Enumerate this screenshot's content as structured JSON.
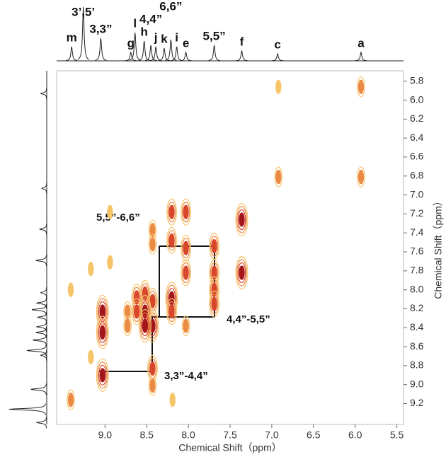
{
  "chart_data": {
    "type": "contour",
    "xlabel": "Chemical Shift（ppm）",
    "ylabel": "Chemical Shift（ppm）",
    "xlim": [
      9.58,
      5.42
    ],
    "ylim": [
      5.69,
      9.42
    ],
    "xticks": [
      {
        "value": 9,
        "label": "9.0"
      },
      8.5,
      {
        "value": 8,
        "label": "8.0"
      },
      7.5,
      {
        "value": 7,
        "label": "7.0"
      },
      6.5,
      {
        "value": 6,
        "label": "6.0"
      },
      5.5
    ],
    "yticks": [
      5.8,
      {
        "value": 6,
        "label": "6.0"
      },
      6.2,
      6.4,
      6.6,
      6.8,
      {
        "value": 7,
        "label": "7.0"
      },
      7.2,
      7.4,
      7.6,
      7.8,
      {
        "value": 8,
        "label": "8.0"
      },
      8.2,
      8.4,
      8.6,
      8.8,
      {
        "value": 9,
        "label": "9.0"
      },
      9.2
    ],
    "colors": [
      "#f6c56a",
      "#eb8a45",
      "#d9472a",
      "#a3161a"
    ],
    "x": [
      5.93,
      6.92,
      5.93,
      6.92,
      8.2,
      8.03,
      7.36,
      7.36,
      7.69,
      7.69,
      7.69,
      7.69,
      8.03,
      8.03,
      8.03,
      8.2,
      8.2,
      8.2,
      8.43,
      8.43,
      8.43,
      8.43,
      8.43,
      8.43,
      8.52,
      8.52,
      8.52,
      8.62,
      8.62,
      8.73,
      8.73,
      8.94,
      8.94,
      9.03,
      9.03,
      9.03,
      9.17,
      9.17,
      9.41,
      9.41,
      8.19
    ],
    "y": [
      5.86,
      5.86,
      6.81,
      6.81,
      7.18,
      7.18,
      7.26,
      7.82,
      7.54,
      7.82,
      8.0,
      8.15,
      7.56,
      7.82,
      8.38,
      7.48,
      8.09,
      8.23,
      7.37,
      7.52,
      8.12,
      8.38,
      8.83,
      9.01,
      8.04,
      8.23,
      8.38,
      8.08,
      8.23,
      8.23,
      8.38,
      7.18,
      7.71,
      8.23,
      8.45,
      8.9,
      7.78,
      8.71,
      8.0,
      9.16,
      9.16
    ],
    "intensity": [
      2,
      1,
      2,
      2,
      3,
      3,
      4,
      4,
      3,
      3,
      3,
      3,
      3,
      3,
      2,
      3,
      4,
      3,
      2,
      2,
      3,
      4,
      3,
      2,
      3,
      4,
      4,
      3,
      3,
      2,
      2,
      1,
      1,
      4,
      4,
      4,
      1,
      1,
      1,
      2,
      1
    ],
    "projection": {
      "labels": [
        "m",
        "3’,5’",
        "3,3”",
        "g",
        "l",
        "h",
        "4,4”",
        "j",
        "k",
        "6,6”",
        "i",
        "e",
        "5,5”",
        "f",
        "c",
        "a"
      ],
      "x": [
        9.4,
        9.26,
        9.05,
        8.69,
        8.64,
        8.53,
        8.45,
        8.39,
        8.29,
        8.21,
        8.14,
        8.03,
        7.69,
        7.36,
        6.93,
        5.93
      ],
      "height": [
        20,
        76,
        32,
        12,
        40,
        28,
        22,
        20,
        18,
        30,
        20,
        12,
        22,
        14,
        10,
        12
      ]
    },
    "annotations": [
      "5,5”-6,6”",
      "4,4”-5,5”",
      "3,3”-4,4”"
    ]
  }
}
